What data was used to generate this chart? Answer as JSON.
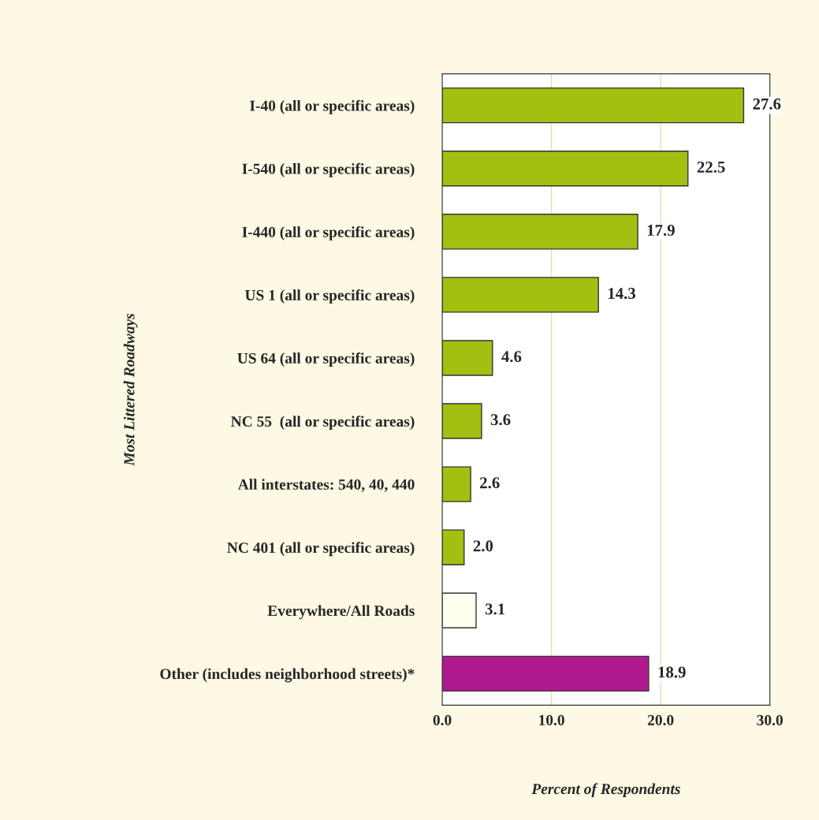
{
  "chart_data": {
    "type": "bar",
    "orientation": "horizontal",
    "categories": [
      "I-40 (all or specific areas)",
      "I-540 (all or specific areas)",
      "I-440 (all or specific areas)",
      "US 1 (all or specific areas)",
      "US 64 (all or specific areas)",
      "NC 55  (all or specific areas)",
      "All interstates: 540, 40, 440",
      "NC 401 (all or specific areas)",
      "Everywhere/All Roads",
      "Other (includes neighborhood streets)*"
    ],
    "values": [
      27.6,
      22.5,
      17.9,
      14.3,
      4.6,
      3.6,
      2.6,
      2.0,
      3.1,
      18.9
    ],
    "value_labels": [
      "27.6",
      "22.5",
      "17.9",
      "14.3",
      "4.6",
      "3.6",
      "2.6",
      "2.0",
      "3.1",
      "18.9"
    ],
    "colors": [
      "#a4bf11",
      "#a4bf11",
      "#a4bf11",
      "#a4bf11",
      "#a4bf11",
      "#a4bf11",
      "#a4bf11",
      "#a4bf11",
      "#fffff0",
      "#b0198f"
    ],
    "xlim": [
      0,
      30
    ],
    "xticks": [
      {
        "value": 0,
        "label": "0.0"
      },
      {
        "value": 10,
        "label": "10.0"
      },
      {
        "value": 20,
        "label": "20.0"
      },
      {
        "value": 30,
        "label": "30.0"
      }
    ],
    "xlabel": "Percent of Respondents",
    "ylabel": "Most Littered Roadways",
    "grid": "x"
  }
}
